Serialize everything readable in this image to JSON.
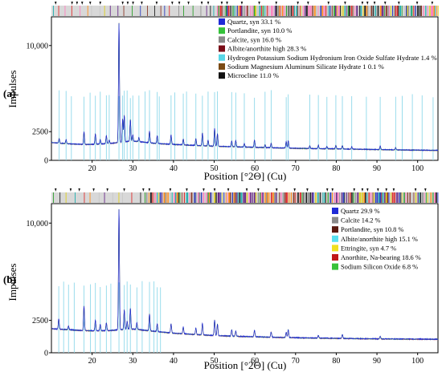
{
  "chart_data": [
    {
      "type": "line",
      "panel_label": "(a)",
      "xlabel": "Position [°2Θ] (Cu)",
      "ylabel": "Impulses",
      "xlim": [
        10,
        105
      ],
      "ylim": [
        0,
        12500
      ],
      "x_ticks": [
        20,
        30,
        40,
        50,
        60,
        70,
        80,
        90,
        100
      ],
      "x_tick_labels": [
        "20",
        "30",
        "40",
        "50",
        "60",
        "70",
        "80",
        "90",
        "100"
      ],
      "y_ticks": [
        0,
        2500,
        10000
      ],
      "y_tick_labels": [
        "0",
        "2500",
        "10,000"
      ],
      "grid": false,
      "legend_position": "top-right",
      "legend": [
        {
          "label": "Quartz, syn 33.1 %",
          "color": "#1f2bd6"
        },
        {
          "label": "Portlandite, syn 10.0 %",
          "color": "#35c23a"
        },
        {
          "label": "Calcite, syn 16.0 %",
          "color": "#8a8a8a"
        },
        {
          "label": "Albite/anorthite high 28.3 %",
          "color": "#7a0d18"
        },
        {
          "label": "Hydrogen Potassium Sodium Hydronium Iron Oxide Sulfate Hydrate 1.4 %",
          "color": "#59d6e6"
        },
        {
          "label": "Sodium Magnesium Aluminum Silicate Hydrate 1 0.1 %",
          "color": "#7a4a14"
        },
        {
          "label": "Microcline 11.0 %",
          "color": "#111111"
        }
      ],
      "background": [
        [
          10,
          1550
        ],
        [
          12,
          1480
        ],
        [
          15,
          1420
        ],
        [
          18,
          1370
        ],
        [
          21,
          1390
        ],
        [
          24,
          1450
        ],
        [
          27,
          1560
        ],
        [
          29,
          1650
        ],
        [
          31,
          1640
        ],
        [
          33,
          1560
        ],
        [
          36,
          1450
        ],
        [
          40,
          1380
        ],
        [
          45,
          1290
        ],
        [
          50,
          1220
        ],
        [
          55,
          1170
        ],
        [
          60,
          1120
        ],
        [
          65,
          1080
        ],
        [
          70,
          1040
        ],
        [
          75,
          1010
        ],
        [
          80,
          990
        ],
        [
          85,
          960
        ],
        [
          90,
          930
        ],
        [
          95,
          900
        ],
        [
          100,
          880
        ],
        [
          105,
          860
        ]
      ],
      "peaks": [
        [
          11.9,
          400
        ],
        [
          13.6,
          350
        ],
        [
          18.0,
          1100
        ],
        [
          20.8,
          900
        ],
        [
          22.0,
          380
        ],
        [
          23.5,
          700
        ],
        [
          24.2,
          300
        ],
        [
          26.6,
          10400
        ],
        [
          27.5,
          2000
        ],
        [
          27.9,
          2300
        ],
        [
          29.4,
          1900
        ],
        [
          30.0,
          550
        ],
        [
          31.5,
          350
        ],
        [
          34.1,
          1000
        ],
        [
          36.0,
          700
        ],
        [
          39.4,
          800
        ],
        [
          42.4,
          500
        ],
        [
          45.5,
          600
        ],
        [
          47.1,
          1100
        ],
        [
          48.5,
          500
        ],
        [
          50.1,
          1550
        ],
        [
          50.8,
          1100
        ],
        [
          54.3,
          500
        ],
        [
          55.3,
          550
        ],
        [
          57.4,
          300
        ],
        [
          59.9,
          650
        ],
        [
          62.5,
          250
        ],
        [
          64.0,
          400
        ],
        [
          67.7,
          550
        ],
        [
          68.2,
          650
        ],
        [
          73.5,
          250
        ],
        [
          75.6,
          300
        ],
        [
          77.7,
          200
        ],
        [
          79.9,
          300
        ],
        [
          81.5,
          300
        ],
        [
          83.8,
          200
        ],
        [
          90.8,
          300
        ],
        [
          94.6,
          200
        ]
      ],
      "ref_lines": [
        11.9,
        13.6,
        14.9,
        18.0,
        19.5,
        20.8,
        22.0,
        23.5,
        24.2,
        26.6,
        27.5,
        27.9,
        28.6,
        29.4,
        30.0,
        31.5,
        33.0,
        34.1,
        36.0,
        36.5,
        39.4,
        40.3,
        42.4,
        43.2,
        45.5,
        47.1,
        48.5,
        50.1,
        50.8,
        54.3,
        55.3,
        57.4,
        59.9,
        62.5,
        64.0,
        67.7,
        68.2,
        73.5,
        75.6,
        77.7,
        79.9,
        81.5,
        83.8,
        87.4,
        90.8,
        94.6,
        96.2,
        98.7,
        101.1,
        103.8
      ]
    },
    {
      "type": "line",
      "panel_label": "(b)",
      "xlabel": "Position [°2Θ] (Cu)",
      "ylabel": "Impulses",
      "xlim": [
        10,
        105
      ],
      "ylim": [
        0,
        11500
      ],
      "x_ticks": [
        20,
        30,
        40,
        50,
        60,
        70,
        80,
        90,
        100
      ],
      "x_tick_labels": [
        "20",
        "30",
        "40",
        "50",
        "60",
        "70",
        "80",
        "90",
        "100"
      ],
      "y_ticks": [
        0,
        2500,
        10000
      ],
      "y_tick_labels": [
        "0",
        "2500",
        "10,000"
      ],
      "grid": false,
      "legend_position": "top-right",
      "legend": [
        {
          "label": "Quartz 29.9 %",
          "color": "#1f2bd6"
        },
        {
          "label": "Calcite 14.2 %",
          "color": "#8a8a8a"
        },
        {
          "label": "Portlandite, syn 10.8 %",
          "color": "#5a1a10"
        },
        {
          "label": "Albite/anorthite high 15.1 %",
          "color": "#59e0f0"
        },
        {
          "label": "Ettringite, syn 4.7 %",
          "color": "#f0e020"
        },
        {
          "label": "Anorthite, Na-bearing 18.6 %",
          "color": "#c01818"
        },
        {
          "label": "Sodium Silicon Oxide 6.8 %",
          "color": "#39c23a"
        }
      ],
      "background": [
        [
          10,
          1850
        ],
        [
          12,
          1800
        ],
        [
          15,
          1750
        ],
        [
          18,
          1700
        ],
        [
          21,
          1680
        ],
        [
          24,
          1700
        ],
        [
          27,
          1760
        ],
        [
          29,
          1820
        ],
        [
          31,
          1800
        ],
        [
          33,
          1720
        ],
        [
          36,
          1620
        ],
        [
          40,
          1500
        ],
        [
          45,
          1400
        ],
        [
          50,
          1320
        ],
        [
          55,
          1260
        ],
        [
          60,
          1220
        ],
        [
          65,
          1180
        ],
        [
          70,
          1150
        ],
        [
          75,
          1120
        ],
        [
          80,
          1100
        ],
        [
          85,
          1080
        ],
        [
          90,
          1060
        ],
        [
          95,
          1050
        ],
        [
          100,
          1040
        ],
        [
          105,
          1030
        ]
      ],
      "peaks": [
        [
          11.8,
          800
        ],
        [
          14.2,
          300
        ],
        [
          18.0,
          1900
        ],
        [
          20.8,
          800
        ],
        [
          22.0,
          500
        ],
        [
          23.5,
          600
        ],
        [
          26.6,
          9300
        ],
        [
          27.9,
          1500
        ],
        [
          28.6,
          600
        ],
        [
          29.4,
          1600
        ],
        [
          31.0,
          500
        ],
        [
          34.1,
          1300
        ],
        [
          36.0,
          600
        ],
        [
          39.4,
          700
        ],
        [
          42.4,
          500
        ],
        [
          45.5,
          500
        ],
        [
          47.1,
          900
        ],
        [
          50.1,
          1200
        ],
        [
          50.8,
          900
        ],
        [
          54.3,
          500
        ],
        [
          55.3,
          400
        ],
        [
          59.9,
          500
        ],
        [
          64.0,
          400
        ],
        [
          67.7,
          400
        ],
        [
          68.2,
          600
        ],
        [
          75.6,
          200
        ],
        [
          81.5,
          300
        ],
        [
          90.8,
          200
        ]
      ],
      "ref_lines": [
        11.8,
        13.0,
        14.2,
        15.6,
        18.0,
        19.6,
        20.8,
        22.0,
        23.5,
        24.6,
        26.6,
        27.9,
        28.6,
        29.4,
        31.0,
        32.3,
        34.1,
        35.2,
        36.0,
        36.8
      ]
    }
  ],
  "phase_bar": {
    "colors": [
      "#e03030",
      "#222222",
      "#30a030",
      "#e0d020",
      "#8b3a2a",
      "#ff7fbf",
      "#3040c0",
      "#909090",
      "#20b0b0",
      "#ff9020",
      "#6a2a8a",
      "#c8c8c8"
    ]
  }
}
